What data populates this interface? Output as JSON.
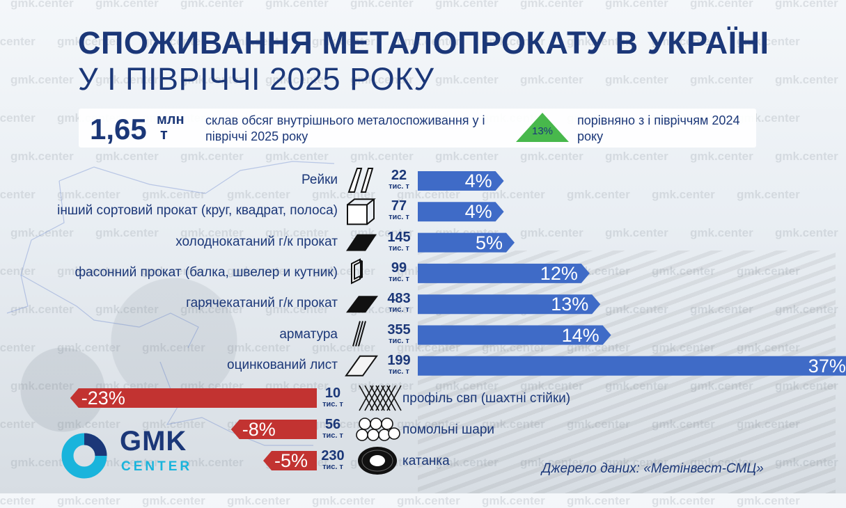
{
  "title": "СПОЖИВАННЯ МЕТАЛОПРОКАТУ В УКРАЇНІ",
  "subtitle": "У І ПІВРІЧЧІ 2025 РОКУ",
  "watermark": "gmk.center",
  "summary": {
    "total_value": "1,65",
    "total_unit_line1": "млн",
    "total_unit_line2": "т",
    "total_text": "склав обсяг внутрішнього металоспоживання у і півріччі 2025 року",
    "change_label": "13%",
    "change_direction": "up",
    "compare_text": "порівняно з і півріччям 2024 року"
  },
  "volume_unit": "тис. т",
  "colors": {
    "positive": "#3f6bc7",
    "negative": "#c23331",
    "text": "#1b3778",
    "up_triangle": "#48b84c",
    "accent": "#19b4dc"
  },
  "chart_data": {
    "type": "bar",
    "orientation": "horizontal",
    "categories": [
      "Рейки",
      "інший сортовий прокат (круг, квадрат, полоса)",
      "холоднокатаний г/к прокат",
      "фасонний прокат (балка, швелер и кутник)",
      "гарячекатаний г/к прокат",
      "арматура",
      "оцинкований лист",
      "профіль свп (шахтні стійки)",
      "помольні шари",
      "катанка"
    ],
    "volumes": [
      22,
      77,
      145,
      99,
      483,
      355,
      199,
      10,
      56,
      230
    ],
    "volume_unit": "тис. т",
    "values": [
      4,
      4,
      5,
      12,
      13,
      14,
      37,
      -23,
      -8,
      -5
    ],
    "value_labels": [
      "4%",
      "4%",
      "5%",
      "12%",
      "13%",
      "14%",
      "37%",
      "-23%",
      "-8%",
      "-5%"
    ],
    "icons": [
      "rail-icon",
      "square-bar-icon",
      "sheet-icon",
      "beam-icon",
      "hot-rolled-sheet-icon",
      "rebar-icon",
      "galvanized-sheet-icon",
      "mesh-icon",
      "balls-icon",
      "coil-icon"
    ]
  },
  "logo": {
    "line1": "GMK",
    "line2": "CENTER"
  },
  "source": "Джерело даних: «Метінвест-СМЦ»"
}
